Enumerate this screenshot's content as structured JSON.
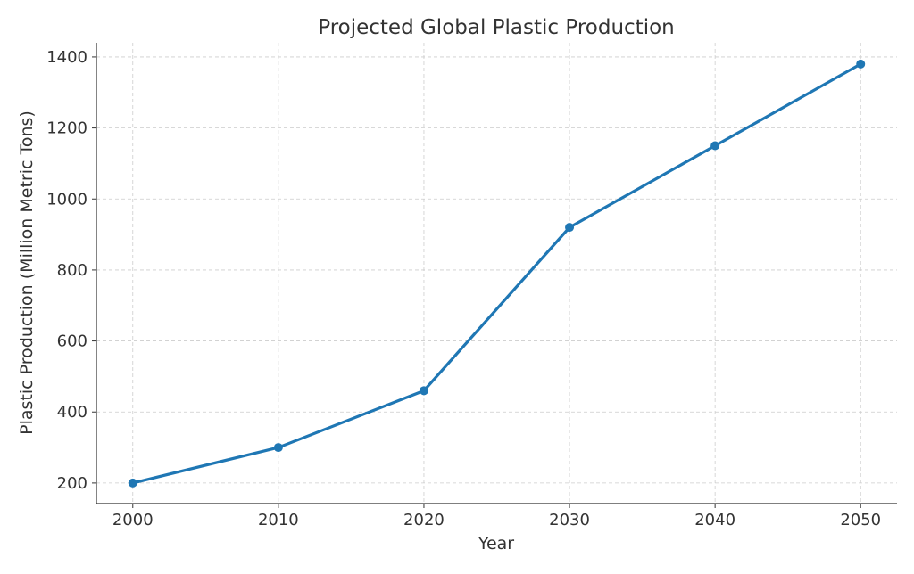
{
  "chart_data": {
    "type": "line",
    "title": "Projected Global Plastic Production",
    "xlabel": "Year",
    "ylabel": "Plastic Production (Million Metric Tons)",
    "x": [
      2000,
      2010,
      2020,
      2030,
      2040,
      2050
    ],
    "series": [
      {
        "name": "Plastic Production",
        "values": [
          200,
          300,
          460,
          920,
          1150,
          1380
        ],
        "color": "#1f77b4",
        "marker": "circle"
      }
    ],
    "xticks": [
      2000,
      2010,
      2020,
      2030,
      2040,
      2050
    ],
    "yticks": [
      200,
      400,
      600,
      800,
      1000,
      1200,
      1400
    ],
    "xlim": [
      1997.5,
      2052.5
    ],
    "ylim": [
      142,
      1440
    ],
    "grid": true,
    "legend": "none"
  }
}
